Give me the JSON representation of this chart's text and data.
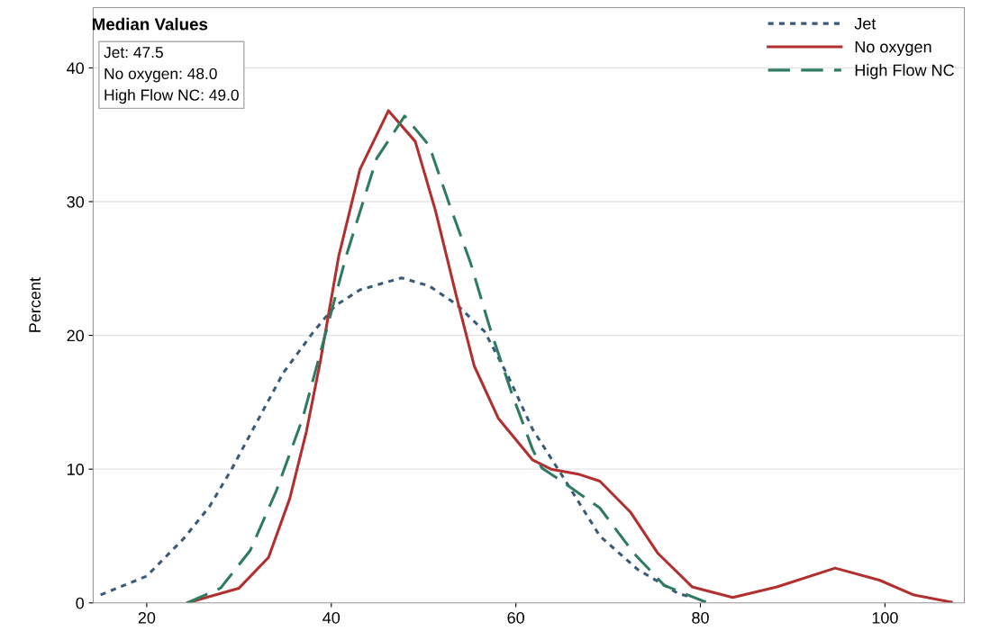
{
  "chart_data": {
    "type": "line",
    "ylabel": "Percent",
    "xlim": [
      14.2,
      108.6
    ],
    "ylim": [
      0,
      44.5
    ],
    "xticks": [
      20,
      40,
      60,
      80,
      100
    ],
    "yticks": [
      0,
      10,
      20,
      30,
      40
    ],
    "grid": "y",
    "legend": "top right",
    "marker": "none",
    "annotations": [
      "Median Values",
      "Jet: 47.5",
      "No oxygen: 48.0",
      "High Flow NC: 49.0"
    ],
    "series": [
      {
        "name": "Jet",
        "color": "#3b5a78",
        "line_style": "dotted",
        "x": [
          15,
          20.0,
          24.0,
          26.8,
          29.2,
          32.0,
          34.8,
          38.0,
          40.4,
          43.1,
          47.6,
          50.6,
          53.6,
          56.6,
          59.2,
          61.8,
          65.4,
          69.1,
          73.2,
          77.6,
          79.1
        ],
        "values": [
          0.6,
          2.0,
          4.8,
          7.2,
          10.0,
          13.6,
          17.2,
          20.2,
          22.2,
          23.4,
          24.3,
          23.7,
          22.3,
          20.3,
          16.9,
          13.0,
          9.1,
          5.0,
          2.5,
          0.7,
          0.4
        ]
      },
      {
        "name": "No oxygen",
        "color": "#b22f2f",
        "line_style": "solid",
        "x": [
          24.4,
          30.0,
          33.2,
          35.5,
          37.3,
          38.8,
          40.8,
          43.1,
          46.2,
          49.1,
          51.3,
          53.6,
          55.5,
          58.1,
          61.8,
          63.8,
          66.9,
          69.1,
          72.4,
          75.4,
          79.1,
          83.5,
          88.3,
          94.6,
          99.4,
          103.1,
          107.2
        ],
        "values": [
          0.0,
          1.1,
          3.4,
          7.8,
          12.8,
          18.0,
          25.9,
          32.4,
          36.8,
          34.5,
          29.3,
          22.8,
          17.7,
          13.8,
          10.7,
          10.0,
          9.6,
          9.1,
          6.8,
          3.7,
          1.2,
          0.4,
          1.2,
          2.6,
          1.7,
          0.6,
          0.05
        ]
      },
      {
        "name": "High Flow NC",
        "color": "#2f7b62",
        "line_style": "dashed",
        "x": [
          24.4,
          28.0,
          31.2,
          34.0,
          36.9,
          39.6,
          41.6,
          44.9,
          47.95,
          50.6,
          52.8,
          55.1,
          57.3,
          59.6,
          61.8,
          62.8,
          65.8,
          69.1,
          72.8,
          76.1,
          80.6
        ],
        "values": [
          0.0,
          1.1,
          3.9,
          8.3,
          13.8,
          20.7,
          25.9,
          33.2,
          36.4,
          34.2,
          29.8,
          25.4,
          20.3,
          15.6,
          11.5,
          10.1,
          8.7,
          7.1,
          3.7,
          1.3,
          0.05
        ]
      }
    ]
  }
}
